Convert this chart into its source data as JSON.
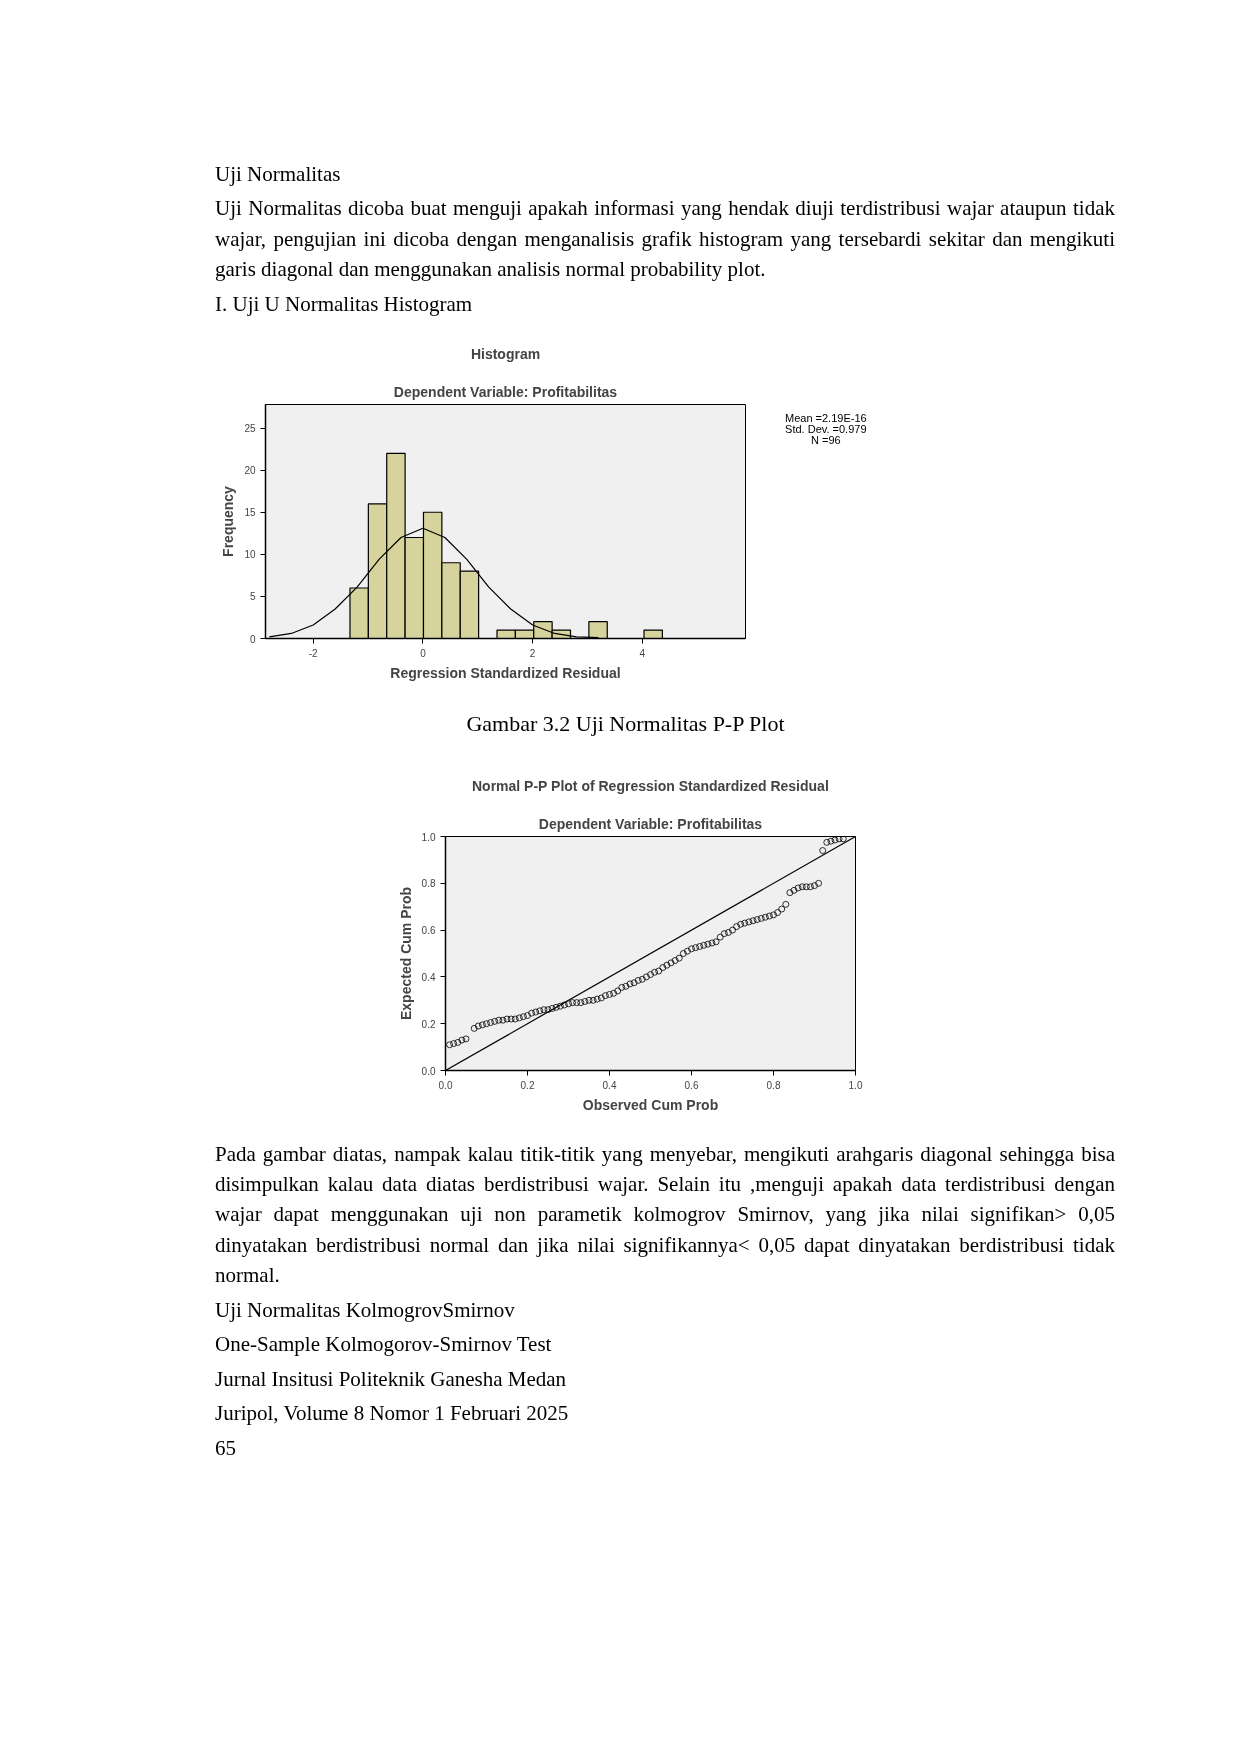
{
  "chart_data": [
    {
      "type": "other",
      "annotations": [
        "Uji Normalitas",
        "Uji Normalitas dicoba buat menguji apakah informasi yang hendak diuji terdistribusi wajar ataupun tidak wajar, pengujian ini dicoba dengan menganalisis grafik histogram yang tersebardi sekitar dan mengikuti garis diagonal dan menggunakan analisis normal probability plot.",
        "I.   Uji U Normalitas Histogram"
      ]
    },
    {
      "type": "histogram",
      "title": "Histogram",
      "subtitle": "Dependent Variable: Profitabilitas",
      "xlabel": "Regression Standardized Residual",
      "ylabel": "Frequency",
      "xlim": [
        -2.87,
        5.88
      ],
      "ylim": [
        0,
        27.8
      ],
      "xticks": [
        -2,
        0,
        2,
        4
      ],
      "yticks": [
        0,
        5,
        10,
        15,
        20,
        25
      ],
      "series": [
        {
          "type": "histogram",
          "color": "#d6d39c",
          "bins": [
            -1.33,
            -0.995,
            -0.66,
            -0.325,
            0.01,
            0.345,
            0.68,
            1.015,
            1.35,
            1.685,
            2.02,
            2.355,
            2.69,
            3.025,
            3.36,
            3.695,
            4.03,
            4.365
          ],
          "values": [
            6,
            16,
            22,
            12,
            15,
            9,
            8,
            0,
            1,
            1,
            2,
            1,
            0,
            2,
            0,
            0,
            1
          ]
        },
        {
          "type": "line",
          "color": "#000000",
          "x": [
            -2.8,
            -2.4,
            -2.0,
            -1.6,
            -1.2,
            -0.8,
            -0.4,
            0,
            0.4,
            0.8,
            1.2,
            1.6,
            2.0,
            2.4,
            2.8,
            3.2
          ],
          "values": [
            0.2,
            0.6,
            1.6,
            3.5,
            6.1,
            9.4,
            12.0,
            13.1,
            12.0,
            9.4,
            6.1,
            3.5,
            1.6,
            0.6,
            0.2,
            0.1
          ]
        }
      ],
      "annotations": [
        "Mean =2.19E-16",
        "Std. Dev. =0.979",
        "N =96"
      ]
    },
    {
      "type": "scatter",
      "title": "Normal P-P Plot of Regression Standardized Residual",
      "subtitle": "Dependent Variable: Profitabilitas",
      "xlabel": "Observed Cum Prob",
      "ylabel": "Expected Cum Prob",
      "xlim": [
        0,
        1
      ],
      "ylim": [
        0,
        1
      ],
      "xticks": [
        {
          "value": 0,
          "label": "0.0"
        },
        0.2,
        0.4,
        0.6,
        0.8,
        {
          "value": 1,
          "label": "1.0"
        }
      ],
      "yticks": [
        {
          "value": 0,
          "label": "0.0"
        },
        0.2,
        0.4,
        0.6,
        0.8,
        {
          "value": 1,
          "label": "1.0"
        }
      ],
      "series": [
        {
          "type": "scatter",
          "marker": "circle",
          "color": "#000000",
          "x": [
            0.01,
            0.02,
            0.03,
            0.04,
            0.05,
            0.07,
            0.08,
            0.09,
            0.1,
            0.11,
            0.12,
            0.13,
            0.14,
            0.15,
            0.16,
            0.17,
            0.18,
            0.19,
            0.2,
            0.21,
            0.22,
            0.23,
            0.24,
            0.25,
            0.26,
            0.27,
            0.28,
            0.29,
            0.3,
            0.31,
            0.32,
            0.33,
            0.34,
            0.35,
            0.36,
            0.37,
            0.38,
            0.39,
            0.4,
            0.41,
            0.42,
            0.43,
            0.44,
            0.45,
            0.46,
            0.47,
            0.48,
            0.49,
            0.5,
            0.51,
            0.52,
            0.53,
            0.54,
            0.55,
            0.56,
            0.57,
            0.58,
            0.59,
            0.6,
            0.61,
            0.62,
            0.63,
            0.64,
            0.65,
            0.66,
            0.67,
            0.68,
            0.69,
            0.7,
            0.71,
            0.72,
            0.73,
            0.74,
            0.75,
            0.76,
            0.77,
            0.78,
            0.79,
            0.8,
            0.81,
            0.82,
            0.83,
            0.84,
            0.85,
            0.86,
            0.87,
            0.88,
            0.89,
            0.9,
            0.91,
            0.92,
            0.93,
            0.94,
            0.95,
            0.96,
            0.97
          ],
          "values": [
            0.11,
            0.115,
            0.12,
            0.13,
            0.135,
            0.18,
            0.19,
            0.195,
            0.2,
            0.205,
            0.21,
            0.215,
            0.215,
            0.22,
            0.22,
            0.22,
            0.225,
            0.23,
            0.235,
            0.245,
            0.25,
            0.255,
            0.26,
            0.26,
            0.265,
            0.27,
            0.275,
            0.28,
            0.285,
            0.29,
            0.29,
            0.29,
            0.295,
            0.3,
            0.3,
            0.305,
            0.31,
            0.32,
            0.325,
            0.33,
            0.34,
            0.355,
            0.36,
            0.37,
            0.375,
            0.385,
            0.39,
            0.4,
            0.41,
            0.42,
            0.425,
            0.44,
            0.45,
            0.46,
            0.47,
            0.48,
            0.5,
            0.51,
            0.52,
            0.525,
            0.53,
            0.535,
            0.54,
            0.545,
            0.55,
            0.57,
            0.585,
            0.59,
            0.6,
            0.615,
            0.625,
            0.63,
            0.635,
            0.64,
            0.645,
            0.65,
            0.655,
            0.66,
            0.665,
            0.675,
            0.69,
            0.71,
            0.76,
            0.77,
            0.78,
            0.785,
            0.785,
            0.785,
            0.79,
            0.8,
            0.94,
            0.975,
            0.98,
            0.985,
            0.99,
            0.99
          ]
        },
        {
          "type": "line",
          "color": "#000000",
          "x": [
            0,
            1
          ],
          "values": [
            0,
            1
          ]
        }
      ],
      "annotations": [
        "Gambar 3.2 Uji Normalitas P-P Plot"
      ]
    },
    {
      "type": "other",
      "annotations": [
        "Pada gambar diatas, nampak kalau titik-titik yang menyebar, mengikuti arahgaris diagonal sehingga bisa disimpulkan kalau data diatas berdistribusi wajar. Selain itu ,menguji apakah data terdistribusi dengan wajar dapat menggunakan uji non parametik kolmogrov Smirnov, yang jika nilai signifikan> 0,05 dinyatakan berdistribusi normal dan jika nilai signifikannya< 0,05 dapat dinyatakan berdistribusi tidak normal.",
        "Uji Normalitas KolmogrovSmirnov",
        "One-Sample Kolmogorov-Smirnov Test",
        "Jurnal Insitusi Politeknik Ganesha Medan",
        "Juripol, Volume 8  Nomor 1 Februari 2025",
        "65"
      ]
    }
  ]
}
